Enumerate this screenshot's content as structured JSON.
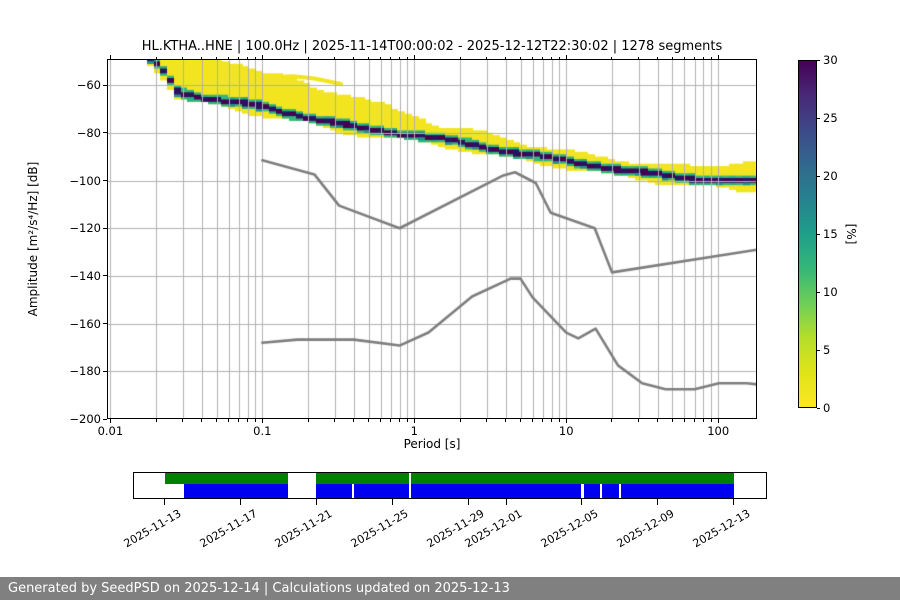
{
  "figure": {
    "title": "HL.KTHA..HNE | 100.0Hz | 2025-11-14T00:00:02 - 2025-12-12T22:30:02 | 1278 segments",
    "footer": "Generated by SeedPSD on 2025-12-14 | Calculations updated on 2025-12-13"
  },
  "chart_data": {
    "type": "heatmap",
    "title": "HL.KTHA..HNE | 100.0Hz | 2025-11-14T00:00:02 - 2025-12-12T22:30:02 | 1278 segments",
    "xlabel": "Period [s]",
    "ylabel": "Amplitude [m²/s⁴/Hz] [dB]",
    "xscale": "log",
    "xlim": [
      0.0095,
      180
    ],
    "ylim": [
      -200,
      -49
    ],
    "grid": true,
    "x_ticks": {
      "values": [
        0.01,
        0.1,
        1,
        10,
        100
      ],
      "labels": [
        "0.01",
        "0.1",
        "1",
        "10",
        "100"
      ]
    },
    "y_ticks": {
      "values": [
        -60,
        -80,
        -100,
        -120,
        -140,
        -160,
        -180,
        -200
      ],
      "labels": [
        "−60",
        "−80",
        "−100",
        "−120",
        "−140",
        "−160",
        "−180",
        "−200"
      ]
    },
    "colorbar": {
      "label": "[%]",
      "min": 0,
      "max": 30,
      "ticks": [
        0,
        5,
        10,
        15,
        20,
        25,
        30
      ],
      "tick_labels": [
        "0",
        "5",
        "10",
        "15",
        "20",
        "25",
        "30"
      ],
      "colormap": "viridis reversed (yellow=0% at bottom, dark purple=30% at top)",
      "stops_bottom_to_top": [
        "#fde725",
        "#dfe318",
        "#b5de2b",
        "#6ece58",
        "#35b779",
        "#1f9e89",
        "#26828e",
        "#31688e",
        "#3e4989",
        "#482878",
        "#440154"
      ]
    },
    "psd_band": {
      "description": "PPSD probability histogram band; [period_s, dB] anchor points",
      "top_edge_db": [
        [
          0.018,
          -48.2
        ],
        [
          0.03,
          -48.5
        ],
        [
          0.055,
          -48.5
        ],
        [
          0.08,
          -52
        ],
        [
          0.1,
          -55
        ],
        [
          0.15,
          -57
        ],
        [
          0.23,
          -60.5
        ],
        [
          0.4,
          -65
        ],
        [
          0.7,
          -69.5
        ],
        [
          1.0,
          -72
        ],
        [
          1.5,
          -77
        ],
        [
          2.5,
          -79.5
        ],
        [
          4,
          -82.5
        ],
        [
          6,
          -85
        ],
        [
          10,
          -87.5
        ],
        [
          15,
          -89.5
        ],
        [
          25,
          -91.5
        ],
        [
          40,
          -93
        ],
        [
          70,
          -94.2
        ],
        [
          100,
          -93.5
        ],
        [
          140,
          -91.8
        ],
        [
          180,
          -91.8
        ]
      ],
      "mode_db": [
        [
          0.018,
          -49
        ],
        [
          0.022,
          -53
        ],
        [
          0.028,
          -62.5
        ],
        [
          0.04,
          -65
        ],
        [
          0.06,
          -67
        ],
        [
          0.1,
          -69
        ],
        [
          0.15,
          -71.5
        ],
        [
          0.25,
          -75
        ],
        [
          0.4,
          -77.5
        ],
        [
          0.7,
          -79.5
        ],
        [
          1.0,
          -81
        ],
        [
          1.5,
          -82.5
        ],
        [
          2.5,
          -85
        ],
        [
          4,
          -87.5
        ],
        [
          6,
          -89.5
        ],
        [
          10,
          -91.5
        ],
        [
          15,
          -93.5
        ],
        [
          25,
          -96
        ],
        [
          40,
          -97.5
        ],
        [
          70,
          -99
        ],
        [
          100,
          -99.8
        ],
        [
          180,
          -100.5
        ]
      ],
      "bottom_edge_db": [
        [
          0.018,
          -50.5
        ],
        [
          0.022,
          -56
        ],
        [
          0.028,
          -65.5
        ],
        [
          0.04,
          -68
        ],
        [
          0.06,
          -70
        ],
        [
          0.1,
          -72.5
        ],
        [
          0.15,
          -74.5
        ],
        [
          0.25,
          -78
        ],
        [
          0.4,
          -80.5
        ],
        [
          0.7,
          -82.5
        ],
        [
          1.0,
          -84
        ],
        [
          1.5,
          -85.5
        ],
        [
          2.5,
          -88
        ],
        [
          4,
          -90.5
        ],
        [
          6,
          -92.5
        ],
        [
          10,
          -94.5
        ],
        [
          15,
          -96.5
        ],
        [
          25,
          -99
        ],
        [
          40,
          -100.5
        ],
        [
          70,
          -102
        ],
        [
          100,
          -103.2
        ],
        [
          140,
          -104.5
        ],
        [
          180,
          -104.5
        ]
      ],
      "outlier_streak_db": [
        [
          0.115,
          -56.5
        ],
        [
          0.16,
          -56.2
        ],
        [
          0.22,
          -57.2
        ],
        [
          0.33,
          -59.5
        ]
      ]
    },
    "noise_models": {
      "name": "Peterson NHNM / NLNM reference curves",
      "nhnm": [
        [
          0.1,
          -91.5
        ],
        [
          0.22,
          -97.4
        ],
        [
          0.32,
          -110.5
        ],
        [
          0.8,
          -120
        ],
        [
          3.8,
          -98
        ],
        [
          4.6,
          -96.5
        ],
        [
          6.3,
          -101
        ],
        [
          7.9,
          -113.5
        ],
        [
          15.4,
          -120
        ],
        [
          20,
          -138.5
        ],
        [
          180,
          -129
        ]
      ],
      "nlnm": [
        [
          0.1,
          -168
        ],
        [
          0.17,
          -166.7
        ],
        [
          0.4,
          -166.7
        ],
        [
          0.8,
          -169.2
        ],
        [
          1.24,
          -163.7
        ],
        [
          2.4,
          -148.6
        ],
        [
          4.3,
          -141.1
        ],
        [
          5,
          -141.1
        ],
        [
          6,
          -149
        ],
        [
          10,
          -163.8
        ],
        [
          12,
          -166.2
        ],
        [
          15.6,
          -162.1
        ],
        [
          21.9,
          -177.5
        ],
        [
          31.6,
          -185
        ],
        [
          45,
          -187.5
        ],
        [
          70,
          -187.5
        ],
        [
          101,
          -185
        ],
        [
          154,
          -185
        ],
        [
          180,
          -185.5
        ]
      ]
    },
    "availability": {
      "axis_start": "2025-11-11T09:00",
      "axis_end": "2025-12-14T17:00",
      "tick_labels": [
        "2025-11-13",
        "2025-11-17",
        "2025-11-21",
        "2025-11-25",
        "2025-11-29",
        "2025-12-01",
        "2025-12-05",
        "2025-12-09",
        "2025-12-13"
      ],
      "green_segments": [
        [
          "2025-11-13T00:00",
          "2025-11-19T12:00"
        ],
        [
          "2025-11-21T00:00",
          "2025-11-25T21:00"
        ],
        [
          "2025-11-26T00:00",
          "2025-12-13T00:00"
        ]
      ],
      "blue_segments": [
        [
          "2025-11-14T00:00",
          "2025-11-19T12:00"
        ],
        [
          "2025-11-21T00:00",
          "2025-11-22T21:00"
        ],
        [
          "2025-11-23T00:00",
          "2025-11-25T21:00"
        ],
        [
          "2025-11-26T00:00",
          "2025-12-04T23:00"
        ],
        [
          "2025-12-05T02:00",
          "2025-12-05T23:00"
        ],
        [
          "2025-12-06T02:00",
          "2025-12-06T23:00"
        ],
        [
          "2025-12-07T02:00",
          "2025-12-13T00:00"
        ]
      ]
    }
  },
  "colors": {
    "grid": "#b0b0b0",
    "noise_model": "#7d7d7d",
    "availability_green": "#007f00",
    "availability_blue": "#0000f0",
    "footer_bg": "#808080",
    "footer_text": "#ffffff",
    "psd_yellow": "#f2e41f",
    "psd_green_a": "#35b779",
    "psd_green_b": "#2ab07f",
    "psd_teal": "#21918c",
    "psd_dark_a": "#440154",
    "psd_dark_b": "#2c115f"
  }
}
